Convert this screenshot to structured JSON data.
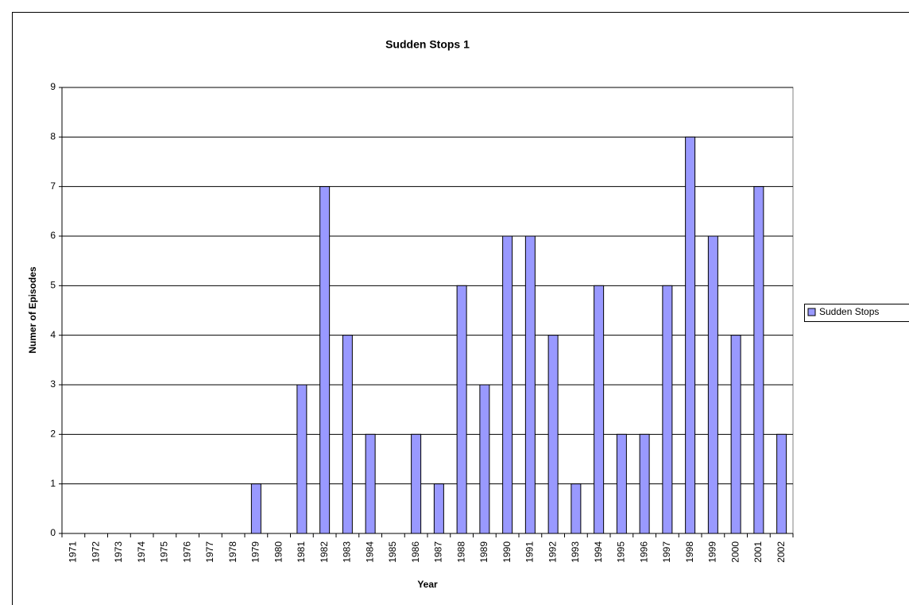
{
  "chart_data": {
    "type": "bar",
    "title": "Sudden Stops 1",
    "x_label": "Year",
    "y_label": "Numer of Episodes",
    "categories": [
      "1971",
      "1972",
      "1973",
      "1974",
      "1975",
      "1976",
      "1977",
      "1978",
      "1979",
      "1980",
      "1981",
      "1982",
      "1983",
      "1984",
      "1985",
      "1986",
      "1987",
      "1988",
      "1989",
      "1990",
      "1991",
      "1992",
      "1993",
      "1994",
      "1995",
      "1996",
      "1997",
      "1998",
      "1999",
      "2000",
      "2001",
      "2002"
    ],
    "series": [
      {
        "name": "Sudden Stops",
        "color": "#9999ff",
        "values": [
          0,
          0,
          0,
          0,
          0,
          0,
          0,
          0,
          1,
          0,
          3,
          7,
          4,
          2,
          0,
          2,
          1,
          5,
          3,
          6,
          6,
          4,
          1,
          5,
          2,
          2,
          5,
          8,
          6,
          4,
          7,
          2
        ]
      }
    ],
    "ylim": [
      0,
      9
    ],
    "yticks": [
      0,
      1,
      2,
      3,
      4,
      5,
      6,
      7,
      8,
      9
    ],
    "grid": true,
    "legend": "right"
  }
}
